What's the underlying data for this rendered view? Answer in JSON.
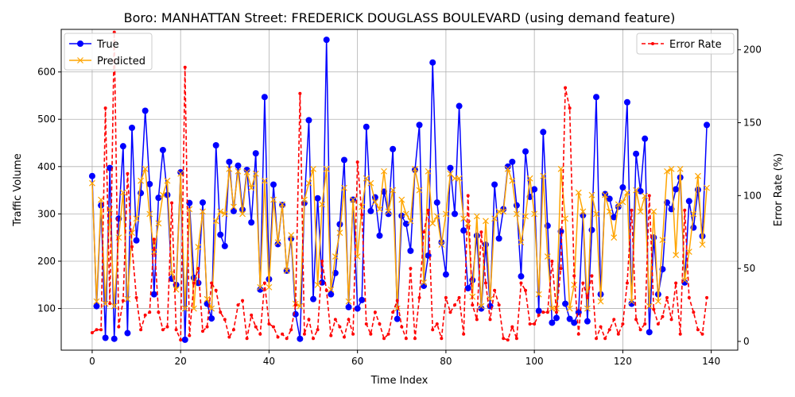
{
  "chart_data": {
    "type": "line",
    "title": "Boro: MANHATTAN Street: FREDERICK DOUGLASS BOULEVARD (using demand feature)",
    "xlabel": "Time Index",
    "ylabel": "Traffic Volume",
    "y2label": "Error Rate (%)",
    "xlim": [
      -7,
      146
    ],
    "ylim": [
      12,
      690
    ],
    "y2lim": [
      -6,
      214
    ],
    "xticks": [
      0,
      20,
      40,
      60,
      80,
      100,
      120,
      140
    ],
    "yticks": [
      100,
      200,
      300,
      400,
      500,
      600
    ],
    "y2ticks": [
      0,
      50,
      100,
      150,
      200
    ],
    "grid": true,
    "legend_left_position": "upper-left",
    "legend_right_position": "upper-right",
    "colors": {
      "true": "#0000ff",
      "predicted": "#ffa500",
      "error": "#ff0000"
    },
    "series": [
      {
        "name": "True",
        "axis": "left",
        "values": [
          380,
          105,
          318,
          38,
          397,
          36,
          290,
          443,
          48,
          482,
          244,
          344,
          518,
          363,
          130,
          334,
          435,
          340,
          163,
          150,
          388,
          34,
          323,
          165,
          154,
          324,
          110,
          79,
          445,
          256,
          232,
          410,
          306,
          402,
          309,
          393,
          282,
          428,
          140,
          547,
          162,
          362,
          236,
          319,
          180,
          248,
          88,
          36,
          323,
          498,
          120,
          333,
          155,
          668,
          130,
          175,
          278,
          414,
          103,
          330,
          100,
          118,
          484,
          306,
          335,
          254,
          347,
          300,
          437,
          78,
          296,
          279,
          222,
          393,
          488,
          148,
          212,
          620,
          324,
          240,
          172,
          397,
          300,
          528,
          265,
          143,
          160,
          254,
          100,
          235,
          105,
          362,
          248,
          310,
          400,
          410,
          318,
          168,
          432,
          336,
          352,
          95,
          473,
          275,
          70,
          80,
          263,
          110,
          78,
          70,
          92,
          297,
          73,
          266,
          547,
          130,
          342,
          332,
          293,
          315,
          356,
          536,
          110,
          427,
          348,
          459,
          50,
          250,
          130,
          183,
          324,
          310,
          352,
          377,
          155,
          327,
          271,
          351,
          253,
          488
        ]
      },
      {
        "name": "Predicted",
        "axis": "left",
        "values": [
          365,
          115,
          330,
          110,
          310,
          105,
          250,
          345,
          120,
          260,
          290,
          370,
          395,
          300,
          220,
          280,
          340,
          370,
          175,
          140,
          385,
          100,
          310,
          100,
          230,
          305,
          120,
          100,
          285,
          305,
          300,
          395,
          315,
          390,
          300,
          388,
          355,
          385,
          145,
          370,
          145,
          330,
          240,
          320,
          180,
          255,
          110,
          105,
          330,
          365,
          395,
          150,
          320,
          395,
          140,
          210,
          260,
          355,
          115,
          330,
          210,
          315,
          375,
          365,
          325,
          310,
          390,
          305,
          350,
          100,
          330,
          300,
          285,
          395,
          350,
          155,
          390,
          280,
          295,
          235,
          300,
          385,
          375,
          375,
          290,
          280,
          125,
          295,
          105,
          285,
          120,
          290,
          305,
          305,
          395,
          370,
          300,
          240,
          295,
          375,
          300,
          130,
          380,
          210,
          100,
          100,
          395,
          290,
          100,
          150,
          345,
          305,
          100,
          340,
          300,
          115,
          340,
          305,
          250,
          320,
          325,
          345,
          115,
          350,
          305,
          338,
          105,
          305,
          115,
          245,
          390,
          395,
          213,
          395,
          160,
          220,
          300,
          380,
          235,
          355
        ]
      },
      {
        "name": "Error Rate",
        "axis": "right",
        "values": [
          6,
          8,
          8,
          160,
          26,
          212,
          10,
          28,
          115,
          65,
          30,
          8,
          18,
          20,
          70,
          20,
          8,
          10,
          95,
          8,
          1,
          188,
          4,
          40,
          50,
          7,
          10,
          40,
          35,
          20,
          15,
          3,
          8,
          25,
          28,
          2,
          18,
          10,
          5,
          40,
          12,
          10,
          3,
          5,
          2,
          8,
          25,
          170,
          5,
          15,
          2,
          8,
          55,
          35,
          4,
          15,
          10,
          3,
          15,
          5,
          123,
          87,
          12,
          5,
          20,
          12,
          2,
          5,
          20,
          28,
          10,
          2,
          50,
          2,
          30,
          75,
          90,
          8,
          12,
          2,
          30,
          20,
          25,
          30,
          5,
          100,
          25,
          15,
          75,
          40,
          15,
          35,
          25,
          2,
          1,
          10,
          2,
          40,
          35,
          12,
          12,
          18,
          20,
          20,
          55,
          20,
          50,
          174,
          160,
          45,
          5,
          40,
          30,
          45,
          2,
          10,
          2,
          8,
          15,
          5,
          12,
          40,
          90,
          15,
          8,
          12,
          100,
          22,
          12,
          17,
          30,
          15,
          40,
          5,
          90,
          30,
          20,
          8,
          5,
          30
        ]
      }
    ]
  }
}
